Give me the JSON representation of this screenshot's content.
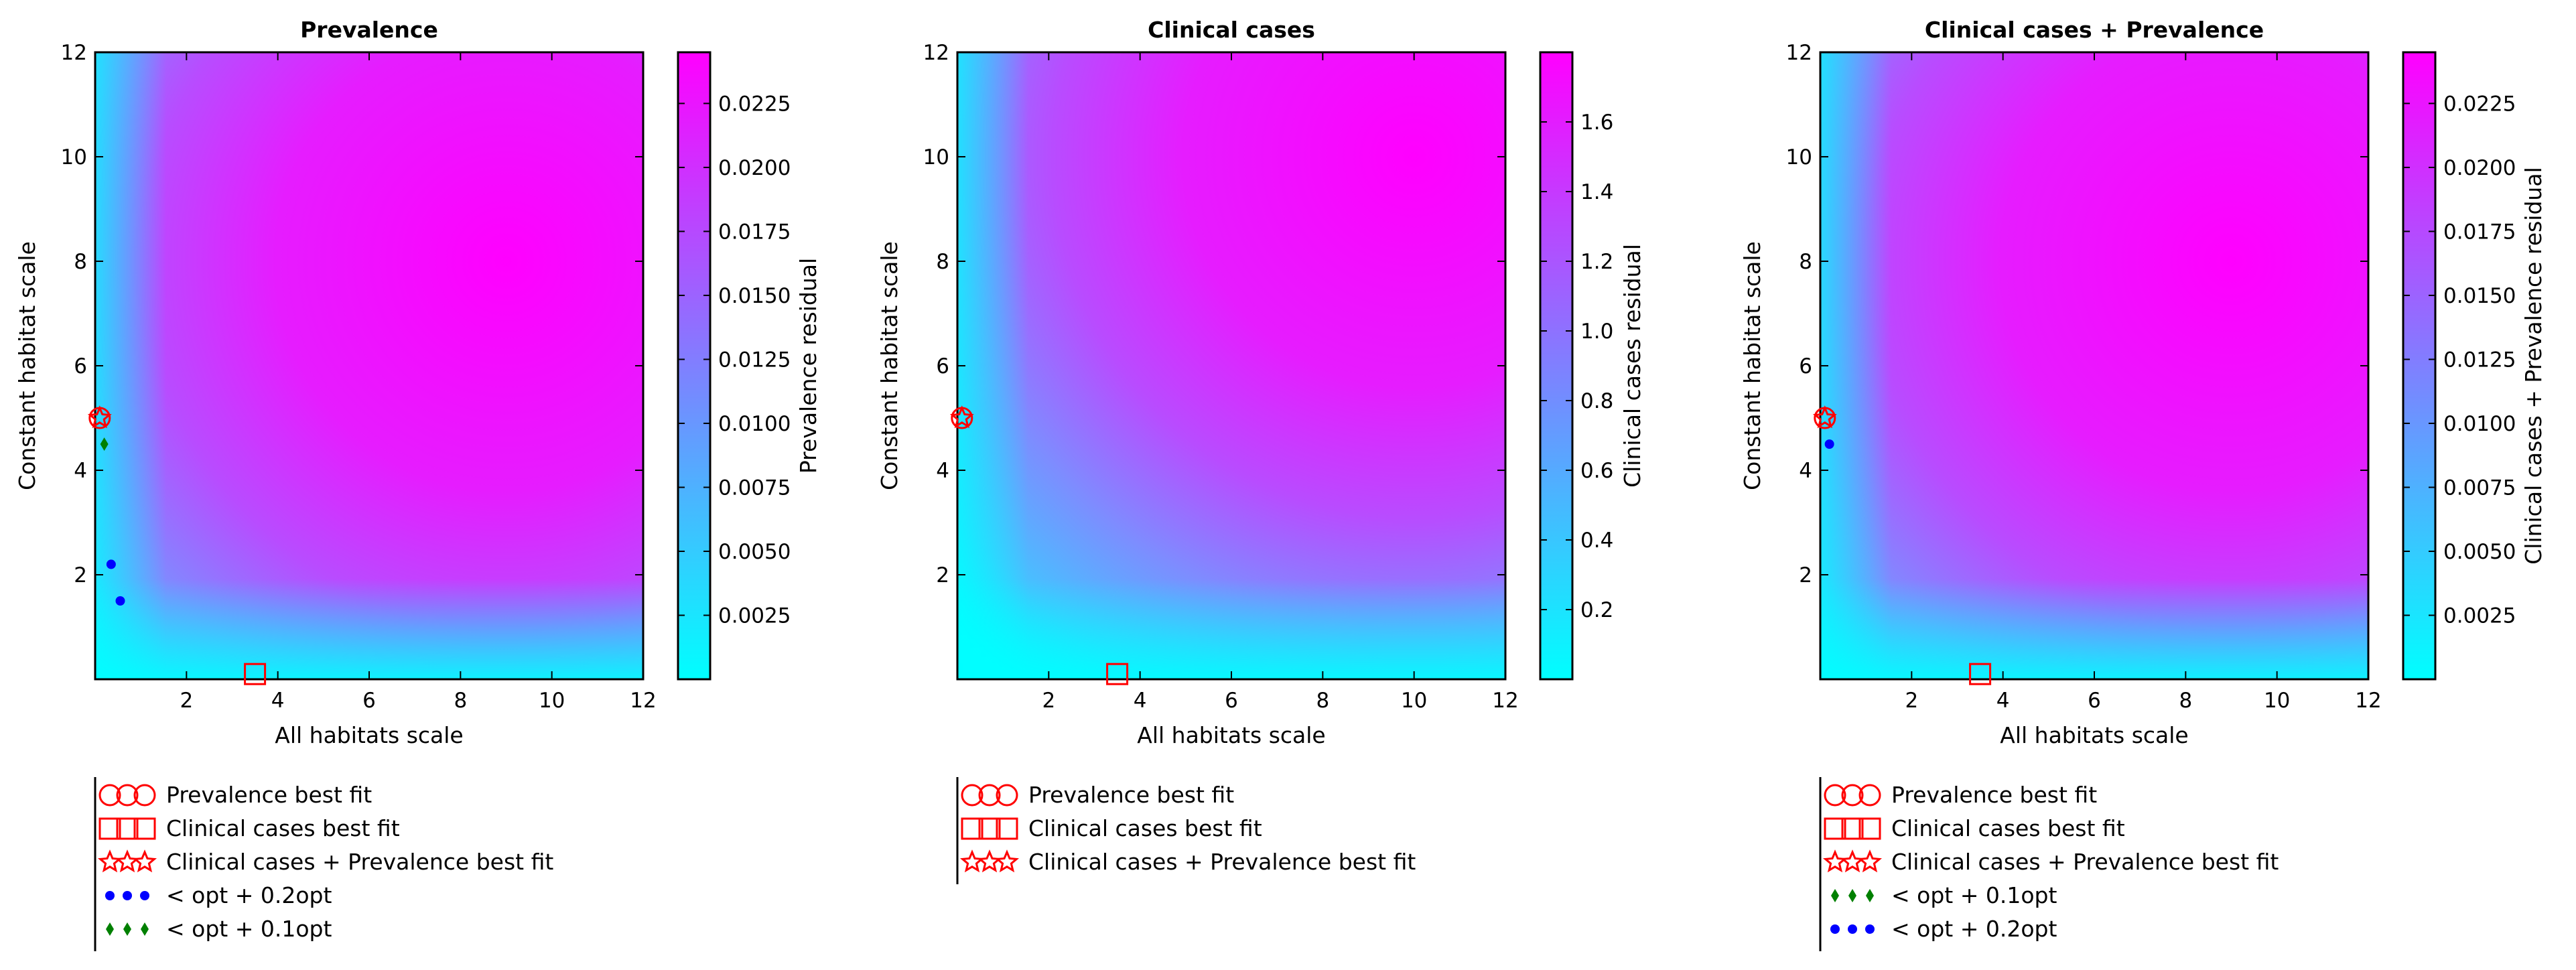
{
  "chart_data": [
    {
      "type": "heatmap",
      "title": "Prevalence",
      "xlabel": "All habitats scale",
      "ylabel": "Constant habitat scale",
      "xlim": [
        0,
        12
      ],
      "ylim": [
        0,
        12
      ],
      "x_ticks": [
        "2",
        "4",
        "6",
        "8",
        "10",
        "12"
      ],
      "y_ticks": [
        "2",
        "4",
        "6",
        "8",
        "10",
        "12"
      ],
      "colorbar": {
        "label": "Prevalence residual",
        "range": [
          0.0,
          0.0245
        ],
        "ticks": [
          0.0025,
          0.005,
          0.0075,
          0.01,
          0.0125,
          0.015,
          0.0175,
          0.02,
          0.0225
        ],
        "tick_labels": [
          "0.0025",
          "0.0050",
          "0.0075",
          "0.0100",
          "0.0125",
          "0.0150",
          "0.0175",
          "0.0200",
          "0.0225"
        ],
        "colormap": [
          "#00ffff",
          "#ff00ff"
        ]
      },
      "hot_spot": [
        9,
        8
      ],
      "markers": {
        "prevalence_best_fit": [
          [
            0.1,
            5.0
          ]
        ],
        "clinical_best_fit": [
          [
            3.5,
            0.1
          ]
        ],
        "combined_best_fit": [
          [
            0.1,
            5.0
          ]
        ],
        "opt_02": [
          [
            0.35,
            2.2
          ],
          [
            0.55,
            1.5
          ]
        ],
        "opt_01": [
          [
            0.2,
            4.5
          ]
        ]
      },
      "legend": [
        {
          "marker": "circle",
          "color": "#ff0000",
          "label": "Prevalence best fit"
        },
        {
          "marker": "square",
          "color": "#ff0000",
          "label": "Clinical cases best fit"
        },
        {
          "marker": "star",
          "color": "#ff0000",
          "label": "Clinical cases + Prevalence best fit"
        },
        {
          "marker": "dot",
          "color": "#0000ff",
          "label": "< opt + 0.2opt"
        },
        {
          "marker": "diamond",
          "color": "#008000",
          "label": "< opt + 0.1opt"
        }
      ]
    },
    {
      "type": "heatmap",
      "title": "Clinical cases",
      "xlabel": "All habitats scale",
      "ylabel": "Constant habitat scale",
      "xlim": [
        0,
        12
      ],
      "ylim": [
        0,
        12
      ],
      "x_ticks": [
        "2",
        "4",
        "6",
        "8",
        "10",
        "12"
      ],
      "y_ticks": [
        "2",
        "4",
        "6",
        "8",
        "10",
        "12"
      ],
      "colorbar": {
        "label": "Clinical cases residual",
        "range": [
          0.0,
          1.8
        ],
        "ticks": [
          0.2,
          0.4,
          0.6,
          0.8,
          1.0,
          1.2,
          1.4,
          1.6
        ],
        "tick_labels": [
          "0.2",
          "0.4",
          "0.6",
          "0.8",
          "1.0",
          "1.2",
          "1.4",
          "1.6"
        ],
        "colormap": [
          "#00ffff",
          "#ff00ff"
        ]
      },
      "hot_spot": [
        10,
        10
      ],
      "markers": {
        "prevalence_best_fit": [
          [
            0.1,
            5.0
          ]
        ],
        "clinical_best_fit": [
          [
            3.5,
            0.1
          ]
        ],
        "combined_best_fit": [
          [
            0.1,
            5.0
          ]
        ]
      },
      "legend": [
        {
          "marker": "circle",
          "color": "#ff0000",
          "label": "Prevalence best fit"
        },
        {
          "marker": "square",
          "color": "#ff0000",
          "label": "Clinical cases best fit"
        },
        {
          "marker": "star",
          "color": "#ff0000",
          "label": "Clinical cases + Prevalence best fit"
        }
      ]
    },
    {
      "type": "heatmap",
      "title": "Clinical cases + Prevalence",
      "xlabel": "All habitats scale",
      "ylabel": "Constant habitat scale",
      "xlim": [
        0,
        12
      ],
      "ylim": [
        0,
        12
      ],
      "x_ticks": [
        "2",
        "4",
        "6",
        "8",
        "10",
        "12"
      ],
      "y_ticks": [
        "2",
        "4",
        "6",
        "8",
        "10",
        "12"
      ],
      "colorbar": {
        "label": "Clinical cases + Prevalence residual",
        "range": [
          0.0,
          0.0245
        ],
        "ticks": [
          0.0025,
          0.005,
          0.0075,
          0.01,
          0.0125,
          0.015,
          0.0175,
          0.02,
          0.0225
        ],
        "tick_labels": [
          "0.0025",
          "0.0050",
          "0.0075",
          "0.0100",
          "0.0125",
          "0.0150",
          "0.0175",
          "0.0200",
          "0.0225"
        ],
        "colormap": [
          "#00ffff",
          "#ff00ff"
        ]
      },
      "hot_spot": [
        9,
        8
      ],
      "markers": {
        "prevalence_best_fit": [
          [
            0.1,
            5.0
          ]
        ],
        "clinical_best_fit": [
          [
            3.5,
            0.1
          ]
        ],
        "combined_best_fit": [
          [
            0.1,
            5.0
          ]
        ],
        "opt_02": [
          [
            0.2,
            4.5
          ]
        ]
      },
      "legend": [
        {
          "marker": "circle",
          "color": "#ff0000",
          "label": "Prevalence best fit"
        },
        {
          "marker": "square",
          "color": "#ff0000",
          "label": "Clinical cases best fit"
        },
        {
          "marker": "star",
          "color": "#ff0000",
          "label": "Clinical cases + Prevalence best fit"
        },
        {
          "marker": "diamond",
          "color": "#008000",
          "label": "< opt + 0.1opt"
        },
        {
          "marker": "dot",
          "color": "#0000ff",
          "label": "< opt + 0.2opt"
        }
      ]
    }
  ]
}
